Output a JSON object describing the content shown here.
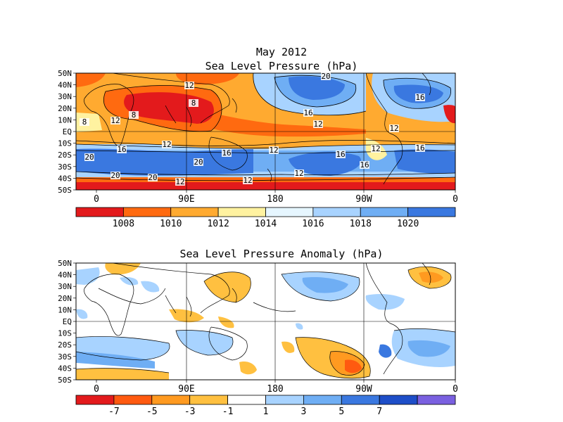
{
  "title": "May 2012",
  "panels": [
    {
      "id": "slp",
      "title": "Sea Level Pressure (hPa)",
      "lat_labels": [
        "50N",
        "40N",
        "30N",
        "20N",
        "10N",
        "EQ",
        "10S",
        "20S",
        "30S",
        "40S",
        "50S"
      ],
      "lon_labels": [
        "0",
        "90E",
        "180",
        "90W",
        "0"
      ],
      "colorbar": {
        "colors": [
          "#e31a1c",
          "#ff6a10",
          "#ffaa30",
          "#fff2a0",
          "#e6f6ff",
          "#a8d3ff",
          "#6faef4",
          "#3a78e0"
        ],
        "labels": [
          "1008",
          "1010",
          "1012",
          "1014",
          "1016",
          "1018",
          "1020"
        ]
      },
      "contour_labels": [
        "20",
        "12",
        "8",
        "16",
        "12",
        "8",
        "12",
        "8",
        "12",
        "16",
        "12",
        "16",
        "20",
        "12",
        "16",
        "12",
        "20",
        "20",
        "16",
        "20",
        "12",
        "16",
        "16",
        "12",
        "12"
      ]
    },
    {
      "id": "anomaly",
      "title": "Sea Level Pressure Anomaly (hPa)",
      "lat_labels": [
        "50N",
        "40N",
        "30N",
        "20N",
        "10N",
        "EQ",
        "10S",
        "20S",
        "30S",
        "40S",
        "50S"
      ],
      "lon_labels": [
        "0",
        "90E",
        "180",
        "90W",
        "0"
      ],
      "colorbar": {
        "colors": [
          "#e31a1c",
          "#ff5a10",
          "#ff9a20",
          "#ffc040",
          "#ffffff",
          "#a8d3ff",
          "#6faef4",
          "#3a78e0",
          "#1e4ec8",
          "#7a60e0"
        ],
        "labels": [
          "-7",
          "-5",
          "-3",
          "-1",
          "1",
          "3",
          "5",
          "7"
        ]
      }
    }
  ]
}
